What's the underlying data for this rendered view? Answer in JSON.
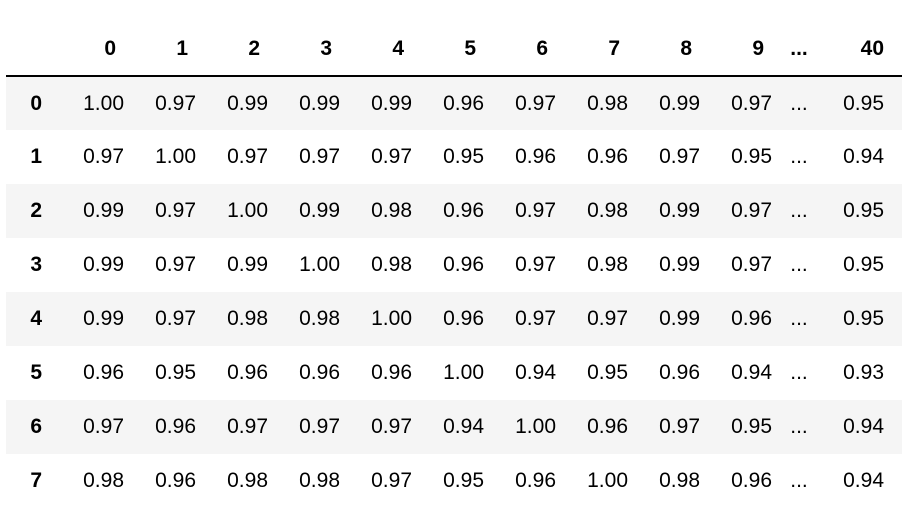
{
  "table": {
    "columns": [
      "",
      "0",
      "1",
      "2",
      "3",
      "4",
      "5",
      "6",
      "7",
      "8",
      "9",
      "...",
      "40"
    ],
    "rows": [
      {
        "index": "0",
        "values": [
          "1.00",
          "0.97",
          "0.99",
          "0.99",
          "0.99",
          "0.96",
          "0.97",
          "0.98",
          "0.99",
          "0.97",
          "...",
          "0.95"
        ]
      },
      {
        "index": "1",
        "values": [
          "0.97",
          "1.00",
          "0.97",
          "0.97",
          "0.97",
          "0.95",
          "0.96",
          "0.96",
          "0.97",
          "0.95",
          "...",
          "0.94"
        ]
      },
      {
        "index": "2",
        "values": [
          "0.99",
          "0.97",
          "1.00",
          "0.99",
          "0.98",
          "0.96",
          "0.97",
          "0.98",
          "0.99",
          "0.97",
          "...",
          "0.95"
        ]
      },
      {
        "index": "3",
        "values": [
          "0.99",
          "0.97",
          "0.99",
          "1.00",
          "0.98",
          "0.96",
          "0.97",
          "0.98",
          "0.99",
          "0.97",
          "...",
          "0.95"
        ]
      },
      {
        "index": "4",
        "values": [
          "0.99",
          "0.97",
          "0.98",
          "0.98",
          "1.00",
          "0.96",
          "0.97",
          "0.97",
          "0.99",
          "0.96",
          "...",
          "0.95"
        ]
      },
      {
        "index": "5",
        "values": [
          "0.96",
          "0.95",
          "0.96",
          "0.96",
          "0.96",
          "1.00",
          "0.94",
          "0.95",
          "0.96",
          "0.94",
          "...",
          "0.93"
        ]
      },
      {
        "index": "6",
        "values": [
          "0.97",
          "0.96",
          "0.97",
          "0.97",
          "0.97",
          "0.94",
          "1.00",
          "0.96",
          "0.97",
          "0.95",
          "...",
          "0.94"
        ]
      },
      {
        "index": "7",
        "values": [
          "0.98",
          "0.96",
          "0.98",
          "0.98",
          "0.97",
          "0.95",
          "0.96",
          "1.00",
          "0.98",
          "0.96",
          "...",
          "0.94"
        ]
      }
    ]
  },
  "colors": {
    "stripe": "#f5f5f5",
    "text": "#000000",
    "rule": "#000000"
  }
}
